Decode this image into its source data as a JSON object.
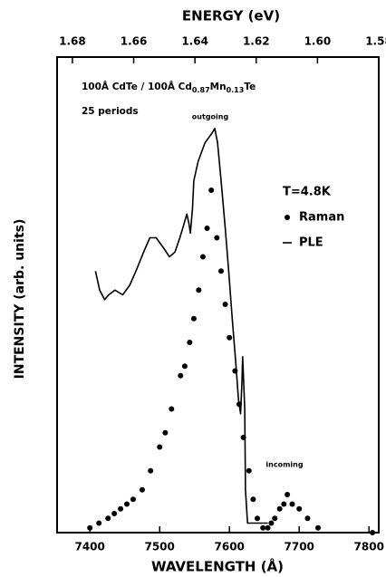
{
  "chart_data": {
    "type": "line",
    "title": "ENERGY (eV)",
    "x_label": "WAVELENGTH (Å)",
    "y_label": "INTENSITY (arb. units)",
    "xlim": [
      7353,
      7814
    ],
    "xticks": [
      7400,
      7500,
      7600,
      7700,
      7800
    ],
    "x2lim": [
      1.685,
      1.58
    ],
    "x2ticks": [
      1.68,
      1.66,
      1.64,
      1.62,
      {
        "value": 1.6,
        "label": "1.60"
      },
      1.58
    ],
    "ylim": [
      0,
      100
    ],
    "grid": false,
    "annotations": {
      "sample": [
        "100Å CdTe / 100Å Cd",
        "0.87",
        "Mn",
        "0.13",
        "Te"
      ],
      "periods": "25 periods",
      "outgoing": "outgoing",
      "incoming": "incoming",
      "temperature": "T=4.8K"
    },
    "series": [
      {
        "name": "Raman",
        "type": "scatter",
        "color": "#000000",
        "x": [
          7400,
          7413,
          7426,
          7435,
          7444,
          7453,
          7462,
          7475,
          7487,
          7500,
          7508,
          7517,
          7530,
          7536,
          7543,
          7549,
          7556,
          7562,
          7568,
          7574,
          7582,
          7588,
          7594,
          7600,
          7608,
          7614,
          7620,
          7628,
          7634,
          7640,
          7648,
          7655,
          7660,
          7665,
          7672,
          7678,
          7683,
          7690,
          7700,
          7712,
          7727,
          7805
        ],
        "values": [
          1,
          2,
          3,
          4,
          5,
          6,
          7,
          9,
          13,
          18,
          21,
          26,
          33,
          35,
          40,
          45,
          51,
          58,
          64,
          72,
          62,
          55,
          48,
          41,
          34,
          27,
          20,
          13,
          7,
          3,
          1,
          1,
          2,
          3,
          5,
          6,
          8,
          6,
          5,
          3,
          1,
          0
        ]
      },
      {
        "name": "PLE",
        "type": "line",
        "color": "#000000",
        "x": [
          7408,
          7414,
          7421,
          7427,
          7436,
          7447,
          7457,
          7466,
          7477,
          7486,
          7495,
          7505,
          7514,
          7522,
          7529,
          7535,
          7539,
          7542,
          7544,
          7547,
          7549,
          7555,
          7560,
          7565,
          7570,
          7575,
          7579,
          7583,
          7588,
          7594,
          7599,
          7604,
          7609,
          7613,
          7616,
          7618,
          7619,
          7622,
          7623,
          7626,
          7642,
          7655
        ],
        "values": [
          55,
          51,
          49,
          50,
          51,
          50,
          52,
          55,
          59,
          62,
          62,
          60,
          58,
          59,
          62,
          65,
          67,
          65,
          63,
          68,
          74,
          78,
          80,
          82,
          83,
          84,
          85,
          82,
          74,
          64,
          55,
          45,
          36,
          28,
          25,
          32,
          37,
          26,
          9,
          2,
          2,
          2
        ]
      }
    ]
  }
}
